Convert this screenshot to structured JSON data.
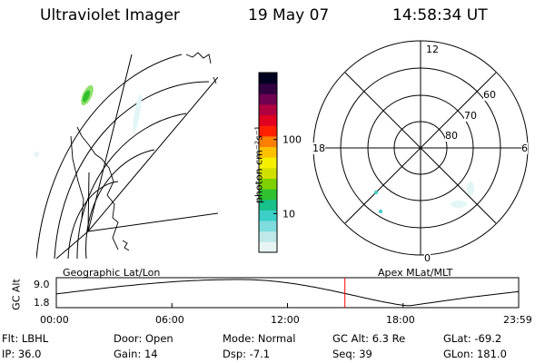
{
  "header": {
    "instrument": "Ultraviolet Imager",
    "date": "19 May 07",
    "time": "14:58:34 UT"
  },
  "geo_panel": {
    "label": "Geographic Lat/Lon"
  },
  "apex_panel": {
    "label": "Apex MLat/MLT",
    "mlt_labels": [
      "12",
      "18",
      "6",
      "0"
    ],
    "mlat_labels": [
      "60",
      "70",
      "80"
    ]
  },
  "colorbar": {
    "unit_label": "photon cm⁻²s⁻¹",
    "scale": "log",
    "range": [
      3,
      800
    ],
    "ticks": [
      {
        "value": 10,
        "label": "10"
      },
      {
        "value": 100,
        "label": "100"
      }
    ],
    "colors": [
      "#e8f4f4",
      "#bfe8e8",
      "#7fdcdc",
      "#3ccfc7",
      "#18c08a",
      "#30c030",
      "#7fd000",
      "#d0e000",
      "#f5f000",
      "#ffc000",
      "#ff8000",
      "#ff2000",
      "#e00020",
      "#b00040",
      "#700050",
      "#300040",
      "#000020"
    ]
  },
  "altitude_plot": {
    "ylabel": "GC Alt",
    "yticks": [
      "9.0",
      "1.8"
    ],
    "yrange": [
      1.8,
      9.0
    ],
    "xticks": [
      "00:00",
      "06:00",
      "12:00",
      "18:00",
      "23:59"
    ],
    "current_time_hours": 14.98,
    "marker_color": "#ff0000"
  },
  "status": {
    "flt": "Flt: LBHL",
    "ip": "IP: 36.0",
    "door": "Door: Open",
    "gain": "Gain: 14",
    "mode": "Mode: Normal",
    "dsp": "Dsp:   -7.1",
    "gc_alt": "GC Alt: 6.3 Re",
    "seq": "Seq: 39",
    "glat": "GLat: -69.2",
    "glon": "GLon: 181.0"
  }
}
